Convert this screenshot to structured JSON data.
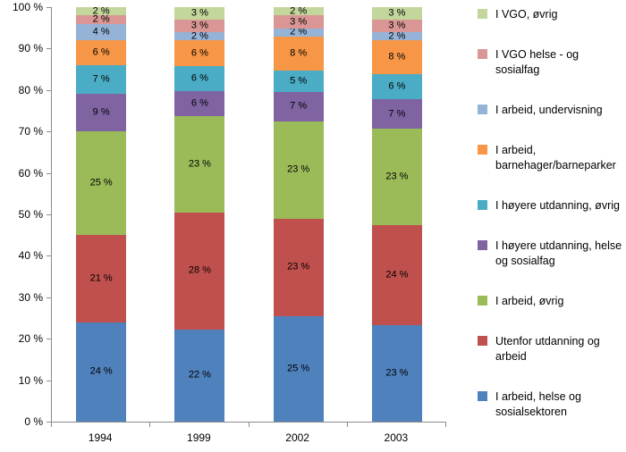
{
  "chart_data": {
    "type": "bar",
    "subtype": "stacked-100-percent",
    "title": "",
    "xlabel": "",
    "ylabel": "",
    "grid": false,
    "ylim": [
      0,
      100
    ],
    "categories": [
      "1994",
      "1999",
      "2002",
      "2003"
    ],
    "series": [
      {
        "name": "I arbeid, helse og sosialsektoren",
        "color": "#4F81BD",
        "values": [
          24,
          22,
          25,
          23
        ]
      },
      {
        "name": "Utenfor utdanning og arbeid",
        "color": "#C0504D",
        "values": [
          21,
          28,
          23,
          24
        ]
      },
      {
        "name": "I arbeid, øvrig",
        "color": "#9BBB59",
        "values": [
          25,
          23,
          23,
          23
        ]
      },
      {
        "name": "I høyere utdanning, helse og sosialfag",
        "color": "#8064A2",
        "values": [
          9,
          6,
          7,
          7
        ]
      },
      {
        "name": "I høyere utdanning, øvrig",
        "color": "#4BACC6",
        "values": [
          7,
          6,
          5,
          6
        ]
      },
      {
        "name": "I arbeid, barnehager/barneparker",
        "color": "#F79646",
        "values": [
          6,
          6,
          8,
          8
        ]
      },
      {
        "name": "I arbeid, undervisning",
        "color": "#95B3D7",
        "values": [
          4,
          2,
          2,
          2
        ]
      },
      {
        "name": "I VGO helse - og sosialfag",
        "color": "#D99694",
        "values": [
          2,
          3,
          3,
          3
        ]
      },
      {
        "name": "I VGO, øvrig",
        "color": "#C3D69B",
        "values": [
          2,
          3,
          2,
          3
        ]
      }
    ],
    "data_label_suffix": " %",
    "y_axis": {
      "ticks": [
        "100 %",
        "90 %",
        "80 %",
        "70 %",
        "60 %",
        "50 %",
        "40 %",
        "30 %",
        "20 %",
        "10 %",
        "0 %"
      ]
    },
    "legend_position": "right",
    "legend": [
      {
        "label": "I VGO, øvrig",
        "color": "#C3D69B"
      },
      {
        "label": "I VGO helse - og sosialfag",
        "color": "#D99694"
      },
      {
        "label": "I arbeid, undervisning",
        "color": "#95B3D7"
      },
      {
        "label": "I arbeid, barnehager/barneparker",
        "color": "#F79646"
      },
      {
        "label": "I høyere utdanning, øvrig",
        "color": "#4BACC6"
      },
      {
        "label": "I høyere utdanning, helse og sosialfag",
        "color": "#8064A2"
      },
      {
        "label": "I arbeid, øvrig",
        "color": "#9BBB59"
      },
      {
        "label": "Utenfor utdanning og arbeid",
        "color": "#C0504D"
      },
      {
        "label": "I arbeid, helse og sosialsektoren",
        "color": "#4F81BD"
      }
    ]
  }
}
